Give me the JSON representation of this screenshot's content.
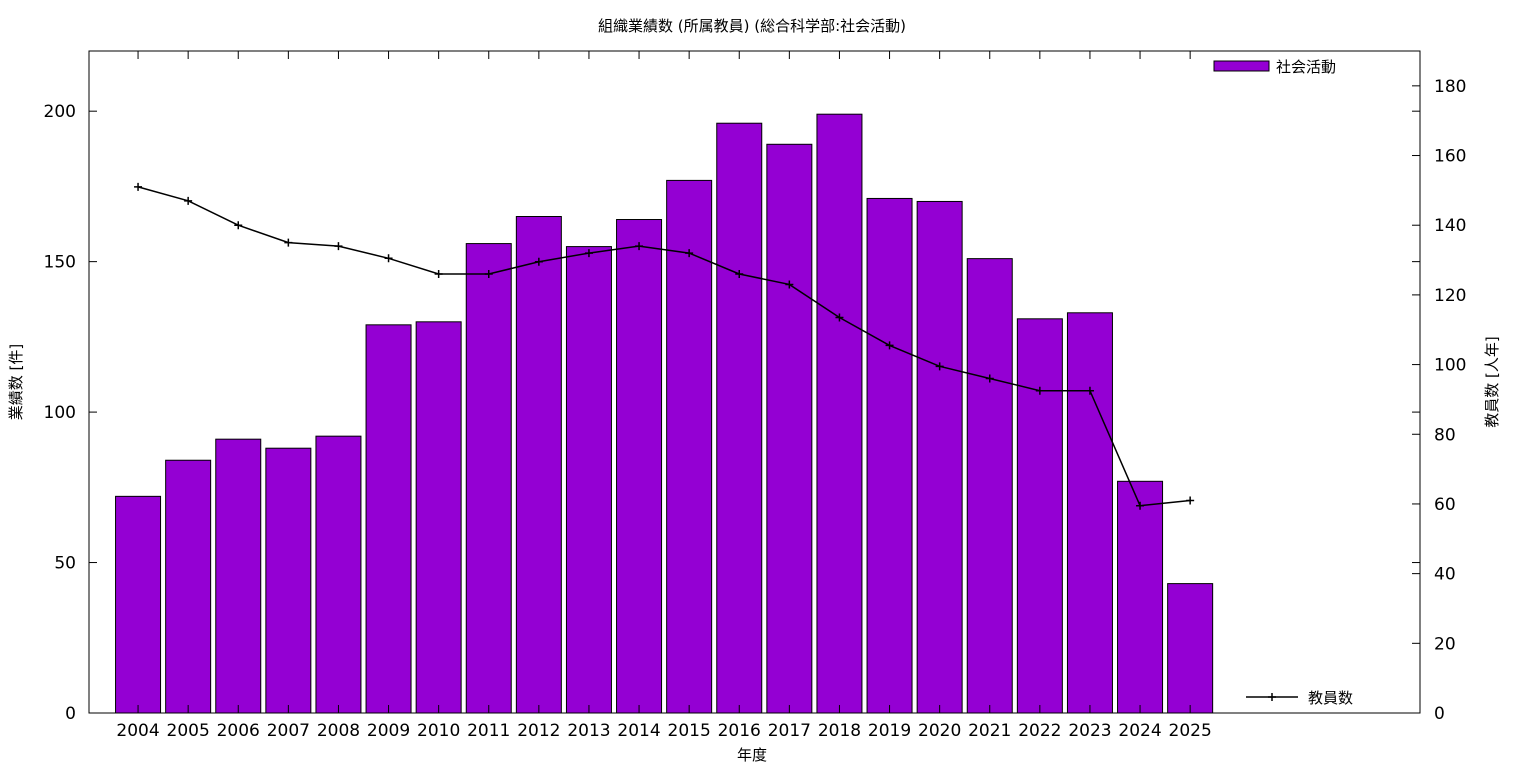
{
  "chart_data": {
    "type": "bar",
    "title": "組織業績数 (所属教員) (総合科学部:社会活動)",
    "xlabel": "年度",
    "ylabel": "業績数 [件]",
    "y2label": "教員数 [人年]",
    "categories": [
      "2004",
      "2005",
      "2006",
      "2007",
      "2008",
      "2009",
      "2010",
      "2011",
      "2012",
      "2013",
      "2014",
      "2015",
      "2016",
      "2017",
      "2018",
      "2019",
      "2020",
      "2021",
      "2022",
      "2023",
      "2024",
      "2025"
    ],
    "ylim": [
      0,
      220
    ],
    "y2lim": [
      0,
      190
    ],
    "yticks": [
      0,
      50,
      100,
      150,
      200
    ],
    "y2ticks": [
      0,
      20,
      40,
      60,
      80,
      100,
      120,
      140,
      160,
      180
    ],
    "grid": false,
    "series": [
      {
        "name": "社会活動",
        "type": "bar",
        "axis": "left",
        "color": "#9400d3",
        "values": [
          72,
          84,
          91,
          88,
          92,
          129,
          130,
          156,
          165,
          155,
          164,
          177,
          196,
          189,
          199,
          171,
          170,
          151,
          131,
          133,
          77,
          43
        ]
      },
      {
        "name": "教員数",
        "type": "line",
        "axis": "right",
        "color": "#000000",
        "values": [
          151,
          147,
          140,
          135,
          134,
          130.5,
          126,
          126,
          129.5,
          132,
          134,
          132,
          126,
          123,
          113.5,
          105.5,
          99.5,
          96,
          92.5,
          92.5,
          59.5,
          61
        ]
      }
    ],
    "legend": {
      "bar_position": "top-right",
      "line_position": "bottom-right"
    }
  }
}
